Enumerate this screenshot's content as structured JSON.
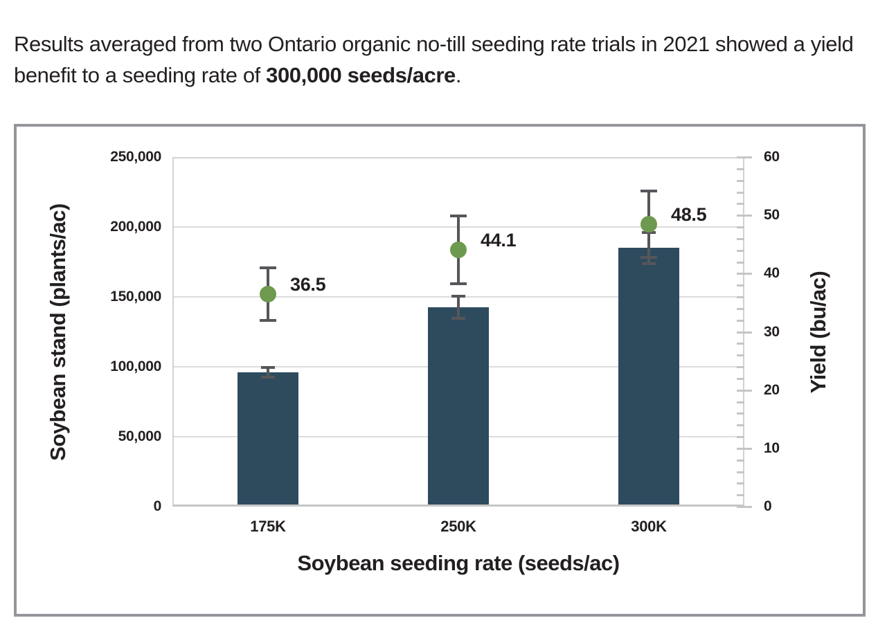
{
  "header": {
    "text_before": "Results averaged from two Ontario organic no-till seeding rate trials in 2021 showed a yield benefit to a seeding rate of ",
    "text_bold": "300,000 seeds/acre",
    "text_after": "."
  },
  "chart_data": {
    "type": "bar",
    "subtype": "dual-axis column chart with yield points and error bars",
    "categories": [
      "175K",
      "250K",
      "300K"
    ],
    "series": [
      {
        "name": "Soybean stand",
        "type": "bar",
        "axis": "left",
        "values": [
          96000,
          142500,
          185000
        ],
        "error_bars": [
          3500,
          8000,
          11000
        ],
        "color": "#2e4b5e"
      },
      {
        "name": "Yield",
        "type": "point",
        "axis": "right",
        "values": [
          36.5,
          44.1,
          48.5
        ],
        "error_bars": [
          4.5,
          5.8,
          5.7
        ],
        "point_labels": [
          "36.5",
          "44.1",
          "48.5"
        ],
        "color": "#6d9a4e"
      }
    ],
    "left_axis": {
      "title": "Soybean stand (plants/ac)",
      "min": 0,
      "max": 250000,
      "tick_step": 50000,
      "tick_labels": [
        "0",
        "50,000",
        "100,000",
        "150,000",
        "200,000",
        "250,000"
      ]
    },
    "right_axis": {
      "title": "Yield (bu/ac)",
      "min": 0,
      "max": 60,
      "major_tick_step": 10,
      "minor_tick_step": 2,
      "tick_labels": [
        "0",
        "10",
        "20",
        "30",
        "40",
        "50",
        "60"
      ]
    },
    "x_axis": {
      "title": "Soybean seeding rate (seeds/ac)"
    },
    "grid": {
      "orientation": "horizontal",
      "step_on_left_axis": 50000,
      "color": "#dcdcdc"
    },
    "colors": {
      "error_bar": "#55565a",
      "frame_border": "#95959b",
      "plot_border": "#d2d2d2",
      "text": "#231f20"
    }
  }
}
